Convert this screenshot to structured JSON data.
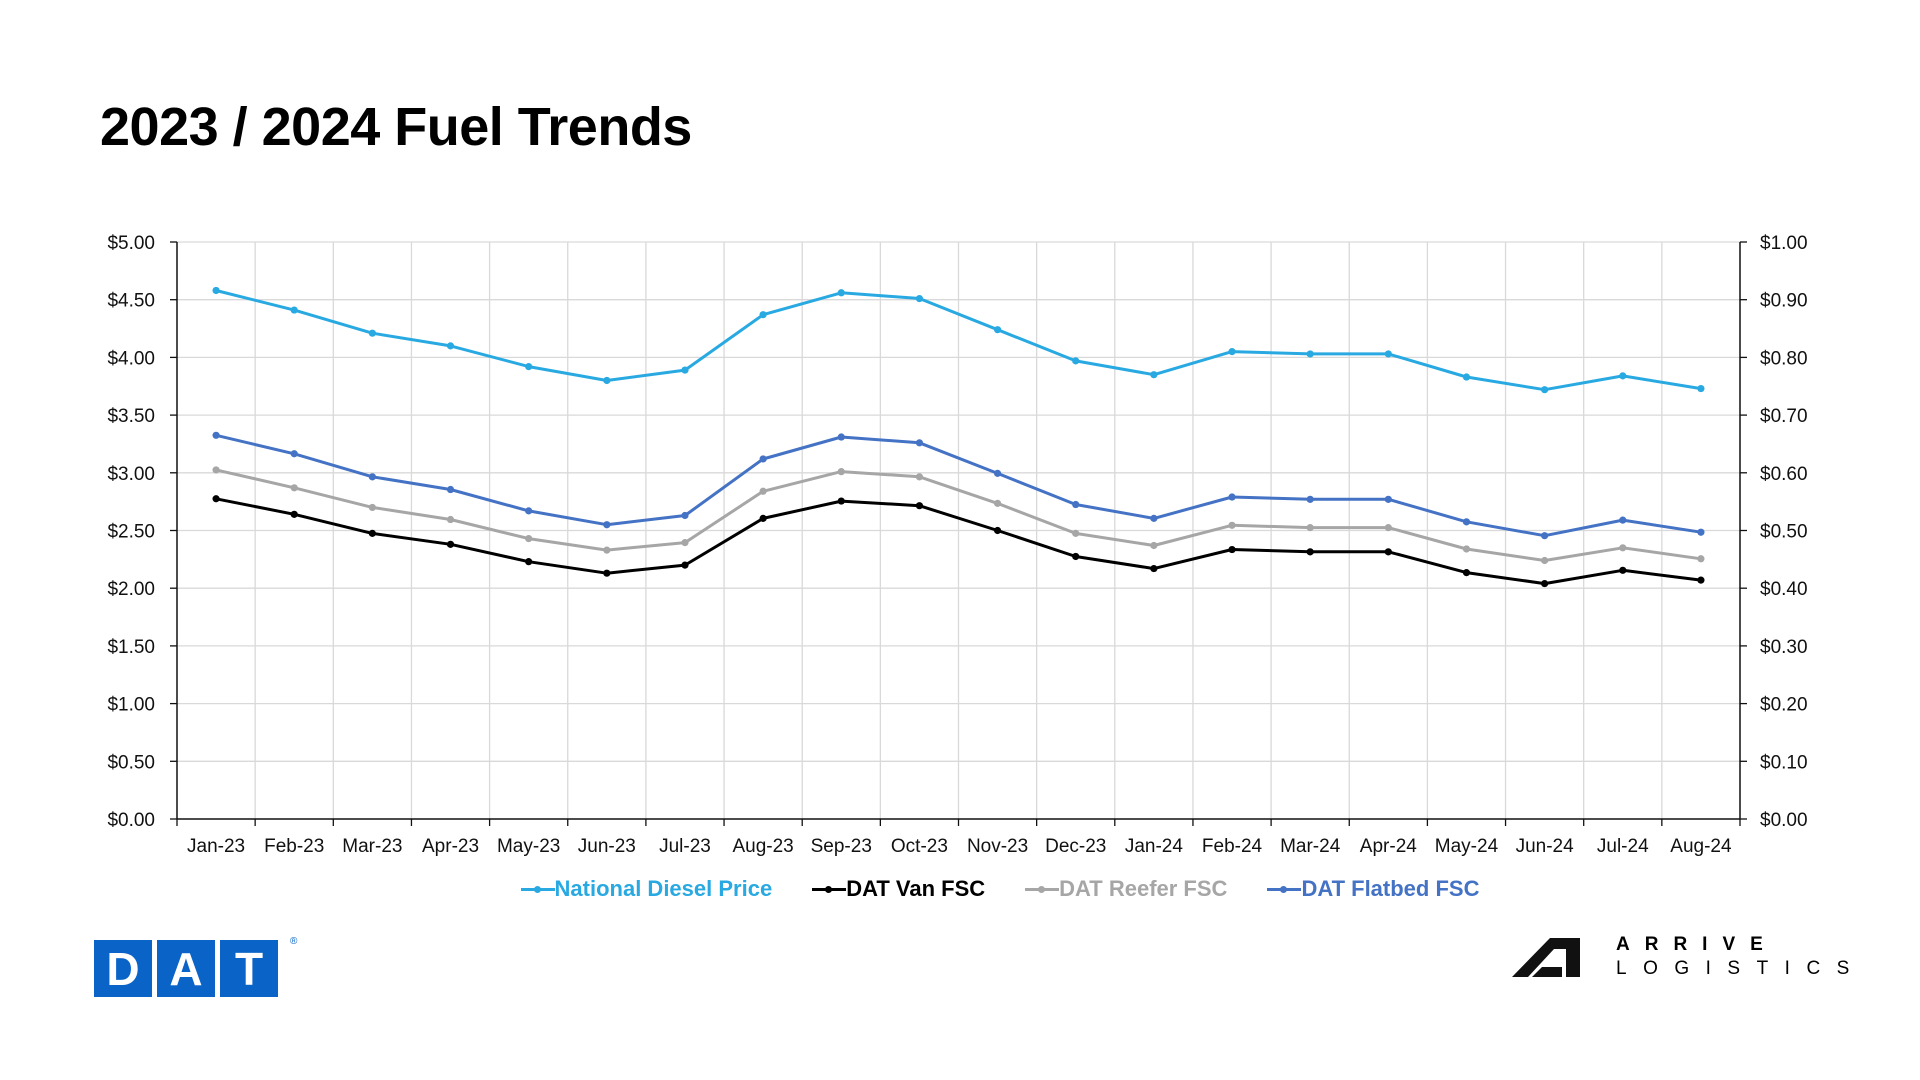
{
  "page": {
    "title": "2023 / 2024 Fuel Trends"
  },
  "legend": [
    {
      "label": "National Diesel Price",
      "color": "#29A9E1"
    },
    {
      "label": "DAT Van FSC",
      "color": "#000000"
    },
    {
      "label": "DAT Reefer FSC",
      "color": "#A6A6A6"
    },
    {
      "label": "DAT Flatbed FSC",
      "color": "#4472C4"
    }
  ],
  "logos": {
    "dat": {
      "letters": [
        "D",
        "A",
        "T"
      ],
      "registered": "®",
      "color": "#0A64C8"
    },
    "arrive": {
      "line1": "ARRIVE",
      "line2": "LOGISTICS"
    }
  },
  "chart_data": {
    "type": "line",
    "title": "2023 / 2024 Fuel Trends",
    "xlabel": "",
    "ylabel": "",
    "grid": true,
    "legend_position": "bottom",
    "categories": [
      "Jan-23",
      "Feb-23",
      "Mar-23",
      "Apr-23",
      "May-23",
      "Jun-23",
      "Jul-23",
      "Aug-23",
      "Sep-23",
      "Oct-23",
      "Nov-23",
      "Dec-23",
      "Jan-24",
      "Feb-24",
      "Mar-24",
      "Apr-24",
      "May-24",
      "Jun-24",
      "Jul-24",
      "Aug-24"
    ],
    "y_left": {
      "range": [
        0,
        5
      ],
      "ticks": [
        "$0.00",
        "$0.50",
        "$1.00",
        "$1.50",
        "$2.00",
        "$2.50",
        "$3.00",
        "$3.50",
        "$4.00",
        "$4.50",
        "$5.00"
      ]
    },
    "y_right": {
      "range": [
        0,
        1
      ],
      "ticks": [
        "$0.00",
        "$0.10",
        "$0.20",
        "$0.30",
        "$0.40",
        "$0.50",
        "$0.60",
        "$0.70",
        "$0.80",
        "$0.90",
        "$1.00"
      ]
    },
    "series": [
      {
        "name": "National Diesel Price",
        "axis": "left",
        "color": "#29A9E1",
        "values": [
          4.58,
          4.41,
          4.21,
          4.1,
          3.92,
          3.8,
          3.89,
          4.37,
          4.56,
          4.51,
          4.24,
          3.97,
          3.85,
          4.05,
          4.03,
          4.03,
          3.83,
          3.72,
          3.84,
          3.73
        ]
      },
      {
        "name": "DAT Van FSC",
        "axis": "right",
        "color": "#000000",
        "values": [
          0.555,
          0.528,
          0.495,
          0.476,
          0.446,
          0.426,
          0.44,
          0.521,
          0.551,
          0.543,
          0.5,
          0.455,
          0.434,
          0.467,
          0.463,
          0.463,
          0.427,
          0.408,
          0.431,
          0.414
        ]
      },
      {
        "name": "DAT Reefer FSC",
        "axis": "right",
        "color": "#A6A6A6",
        "values": [
          0.605,
          0.574,
          0.54,
          0.519,
          0.486,
          0.466,
          0.479,
          0.568,
          0.602,
          0.593,
          0.547,
          0.495,
          0.474,
          0.509,
          0.505,
          0.505,
          0.468,
          0.448,
          0.47,
          0.451
        ]
      },
      {
        "name": "DAT Flatbed FSC",
        "axis": "right",
        "color": "#4472C4",
        "values": [
          0.665,
          0.633,
          0.593,
          0.571,
          0.534,
          0.51,
          0.526,
          0.624,
          0.662,
          0.652,
          0.599,
          0.545,
          0.521,
          0.558,
          0.554,
          0.554,
          0.515,
          0.491,
          0.518,
          0.497
        ]
      }
    ]
  }
}
